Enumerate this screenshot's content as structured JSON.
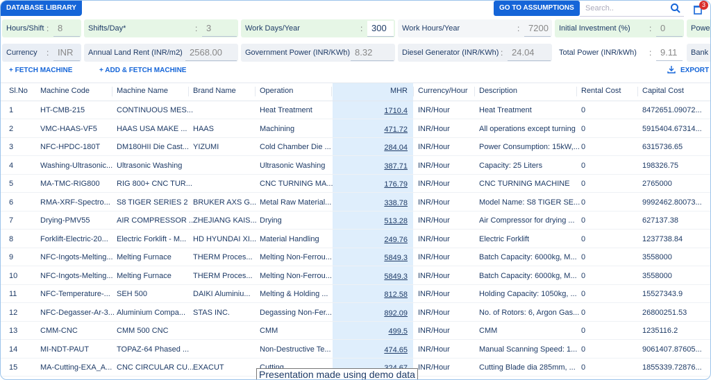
{
  "header": {
    "tab": "DATABASE LIBRARY",
    "assumptions_button": "GO TO ASSUMPTIONS",
    "search_placeholder": "Search..",
    "cart_badge": "3"
  },
  "separator": ":",
  "parameters": [
    [
      {
        "label": "Hours/Shift",
        "value": "8"
      },
      {
        "label": "Shifts/Day*",
        "value": "3"
      },
      {
        "label": "Work Days/Year",
        "value": "300"
      },
      {
        "label": "Work Hours/Year",
        "value": "7200"
      },
      {
        "label": "Initial Investment (%)",
        "value": "0"
      },
      {
        "label": "Powe"
      }
    ],
    [
      {
        "label": "Currency",
        "value": "INR"
      },
      {
        "label": "Annual Land Rent (INR/m2)",
        "value": "2568.00"
      },
      {
        "label": "Government Power (INR/KWh)",
        "value": "8.32"
      },
      {
        "label": "Diesel Generator (INR/KWh)",
        "value": "24.04"
      },
      {
        "label": "Total Power (INR/kWh)",
        "value": "9.11"
      },
      {
        "label": "Bank I"
      }
    ]
  ],
  "actions": {
    "fetch": "+ FETCH MACHINE",
    "add_fetch": "+ ADD & FETCH MACHINE",
    "export": "EXPORT"
  },
  "table": {
    "columns": [
      "Sl.No",
      "Machine Code",
      "Machine Name",
      "Brand Name",
      "Operation",
      "MHR",
      "Currency/Hour",
      "Description",
      "Rental Cost",
      "Capital Cost"
    ],
    "rows": [
      [
        "1",
        "HT-CMB-215",
        "CONTINUOUS MES...",
        null,
        "Heat Treatment",
        "1710.4",
        "INR/Hour",
        "Heat Treatment",
        "0",
        "8472651.09072..."
      ],
      [
        "2",
        "VMC-HAAS-VF5",
        "HAAS USA MAKE ...",
        "HAAS",
        "Machining",
        "471.72",
        "INR/Hour",
        "All operations except turning",
        "0",
        "5915404.67314..."
      ],
      [
        "3",
        "NFC-HPDC-180T",
        "DM180HII Die Cast...",
        "YIZUMI",
        "Cold Chamber Die ...",
        "284.04",
        "INR/Hour",
        "Power Consumption: 15kW,...",
        "0",
        "6315736.65"
      ],
      [
        "4",
        "Washing-Ultrasonic...",
        "Ultrasonic Washing",
        null,
        "Ultrasonic Washing",
        "387.71",
        "INR/Hour",
        "Capacity: 25 Liters",
        "0",
        "198326.75"
      ],
      [
        "5",
        "MA-TMC-RIG800",
        "RIG 800+ CNC TUR...",
        null,
        "CNC TURNING MA...",
        "176.79",
        "INR/Hour",
        "CNC TURNING MACHINE",
        "0",
        "2765000"
      ],
      [
        "6",
        "RMA-XRF-Spectro...",
        "S8 TIGER SERIES 2",
        "BRUKER AXS G...",
        "Metal Raw Material...",
        "338.78",
        "INR/Hour",
        "Model Name: S8 TIGER SE...",
        "0",
        "9992462.80073..."
      ],
      [
        "7",
        "Drying-PMV55",
        "AIR COMPRESSOR ...",
        "ZHEJIANG KAIS...",
        "Drying",
        "513.28",
        "INR/Hour",
        "Air Compressor for drying ...",
        "0",
        "627137.38"
      ],
      [
        "8",
        "Forklift-Electric-20...",
        "Electric Forklift - M...",
        "HD HYUNDAI XI...",
        "Material Handling",
        "249.76",
        "INR/Hour",
        "Electric Forklift",
        "0",
        "1237738.84"
      ],
      [
        "9",
        "NFC-Ingots-Melting...",
        "Melting Furnace",
        "THERM Proces...",
        "Melting Non-Ferrou...",
        "5849.3",
        "INR/Hour",
        "Batch Capacity: 6000kg, M...",
        "0",
        "3558000"
      ],
      [
        "10",
        "NFC-Ingots-Melting...",
        "Melting Furnace",
        "THERM Proces...",
        "Melting Non-Ferrou...",
        "5849.3",
        "INR/Hour",
        "Batch Capacity: 6000kg, M...",
        "0",
        "3558000"
      ],
      [
        "11",
        "NFC-Temperature-...",
        "SEH 500",
        "DAIKI Aluminiu...",
        "Melting & Holding ...",
        "812.58",
        "INR/Hour",
        "Holding Capacity: 1050kg, ...",
        "0",
        "15527343.9"
      ],
      [
        "12",
        "NFC-Degasser-Ar-3...",
        "Aluminium Compa...",
        "STAS INC.",
        "Degassing Non-Fer...",
        "892.09",
        "INR/Hour",
        "No. of Rotors: 6, Argon Gas...",
        "0",
        "26800251.53"
      ],
      [
        "13",
        "CMM-CNC",
        "CMM 500 CNC",
        null,
        "CMM",
        "499.5",
        "INR/Hour",
        "CMM",
        "0",
        "1235116.2"
      ],
      [
        "14",
        "MI-NDT-PAUT",
        "TOPAZ-64 Phased ...",
        null,
        "Non-Destructive Te...",
        "474.65",
        "INR/Hour",
        "Manual Scanning Speed: 1...",
        "0",
        "9061407.87605..."
      ],
      [
        "15",
        "MA-Cutting-EXA_A...",
        "CNC CIRCULAR CU...",
        "EXACUT",
        "Cutting",
        "324.67",
        "INR/Hour",
        "Cutting Blade dia 285mm, ...",
        "0",
        "1855339.72876..."
      ]
    ]
  },
  "footer": {
    "note": "Presentation made using demo data"
  }
}
